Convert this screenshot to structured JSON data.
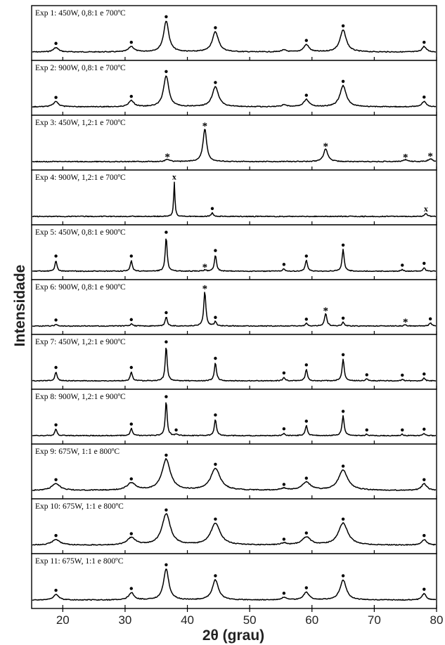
{
  "chart_data": {
    "type": "line",
    "xlabel": "2θ (grau)",
    "ylabel": "Intensidade",
    "xlim": [
      15,
      80
    ],
    "xticks": [
      20,
      30,
      40,
      50,
      60,
      70,
      80
    ],
    "marker_legend": {
      "dot": "•",
      "star": "*",
      "cross": "x"
    },
    "panels": [
      {
        "label": "Exp 1: 450W, 0,8:1 e 700ºC",
        "peaks": [
          {
            "x": 18.9,
            "h": 0.12,
            "w": 0.5,
            "m": "dot"
          },
          {
            "x": 31.0,
            "h": 0.15,
            "w": 0.5,
            "m": "dot"
          },
          {
            "x": 36.6,
            "h": 0.85,
            "w": 0.5,
            "m": "dot"
          },
          {
            "x": 44.5,
            "h": 0.55,
            "w": 0.6,
            "m": "dot"
          },
          {
            "x": 55.5,
            "h": 0.05,
            "w": 0.5,
            "m": ""
          },
          {
            "x": 59.1,
            "h": 0.2,
            "w": 0.5,
            "m": "dot"
          },
          {
            "x": 65.0,
            "h": 0.6,
            "w": 0.6,
            "m": "dot"
          },
          {
            "x": 78.0,
            "h": 0.15,
            "w": 0.4,
            "m": "dot"
          }
        ]
      },
      {
        "label": "Exp 2: 900W, 0,8:1 e 700ºC",
        "peaks": [
          {
            "x": 18.9,
            "h": 0.14,
            "w": 0.5,
            "m": "dot"
          },
          {
            "x": 31.0,
            "h": 0.17,
            "w": 0.5,
            "m": "dot"
          },
          {
            "x": 36.6,
            "h": 0.85,
            "w": 0.5,
            "m": "dot"
          },
          {
            "x": 44.5,
            "h": 0.55,
            "w": 0.6,
            "m": "dot"
          },
          {
            "x": 55.5,
            "h": 0.05,
            "w": 0.5,
            "m": ""
          },
          {
            "x": 59.1,
            "h": 0.2,
            "w": 0.5,
            "m": "dot"
          },
          {
            "x": 65.0,
            "h": 0.58,
            "w": 0.6,
            "m": "dot"
          },
          {
            "x": 78.0,
            "h": 0.15,
            "w": 0.4,
            "m": "dot"
          }
        ]
      },
      {
        "label": "Exp 3: 450W, 1,2:1 e 700ºC",
        "peaks": [
          {
            "x": 36.8,
            "h": 0.06,
            "w": 0.4,
            "m": "star"
          },
          {
            "x": 42.8,
            "h": 0.9,
            "w": 0.35,
            "m": "star"
          },
          {
            "x": 62.2,
            "h": 0.35,
            "w": 0.4,
            "m": "star"
          },
          {
            "x": 75.0,
            "h": 0.05,
            "w": 0.4,
            "m": "star"
          },
          {
            "x": 79.0,
            "h": 0.08,
            "w": 0.4,
            "m": "star"
          }
        ]
      },
      {
        "label": "Exp 4: 900W, 1,2:1 e 700ºC",
        "peaks": [
          {
            "x": 37.9,
            "h": 0.95,
            "w": 0.12,
            "m": "cross"
          },
          {
            "x": 44.0,
            "h": 0.1,
            "w": 0.2,
            "m": "dot"
          },
          {
            "x": 78.3,
            "h": 0.08,
            "w": 0.2,
            "m": "cross"
          }
        ]
      },
      {
        "label": "Exp 5: 450W, 0,8:1 e 900ºC",
        "peaks": [
          {
            "x": 18.9,
            "h": 0.3,
            "w": 0.18,
            "m": "dot"
          },
          {
            "x": 31.0,
            "h": 0.3,
            "w": 0.18,
            "m": "dot"
          },
          {
            "x": 36.6,
            "h": 0.95,
            "w": 0.18,
            "m": "dot"
          },
          {
            "x": 42.8,
            "h": 0.04,
            "w": 0.2,
            "m": "star"
          },
          {
            "x": 44.5,
            "h": 0.45,
            "w": 0.2,
            "m": "dot"
          },
          {
            "x": 55.5,
            "h": 0.07,
            "w": 0.2,
            "m": "dot"
          },
          {
            "x": 59.1,
            "h": 0.3,
            "w": 0.2,
            "m": "dot"
          },
          {
            "x": 65.0,
            "h": 0.6,
            "w": 0.2,
            "m": "dot"
          },
          {
            "x": 74.5,
            "h": 0.05,
            "w": 0.2,
            "m": "dot"
          },
          {
            "x": 78.0,
            "h": 0.1,
            "w": 0.2,
            "m": "dot"
          }
        ]
      },
      {
        "label": "Exp 6: 900W, 0,8:1 e 900ºC",
        "peaks": [
          {
            "x": 18.9,
            "h": 0.05,
            "w": 0.2,
            "m": "dot"
          },
          {
            "x": 31.0,
            "h": 0.06,
            "w": 0.2,
            "m": "dot"
          },
          {
            "x": 36.6,
            "h": 0.25,
            "w": 0.2,
            "m": "dot"
          },
          {
            "x": 42.8,
            "h": 0.95,
            "w": 0.2,
            "m": "star"
          },
          {
            "x": 44.5,
            "h": 0.12,
            "w": 0.2,
            "m": "dot"
          },
          {
            "x": 59.1,
            "h": 0.07,
            "w": 0.2,
            "m": "dot"
          },
          {
            "x": 62.2,
            "h": 0.35,
            "w": 0.22,
            "m": "star"
          },
          {
            "x": 65.0,
            "h": 0.1,
            "w": 0.2,
            "m": "dot"
          },
          {
            "x": 75.0,
            "h": 0.04,
            "w": 0.2,
            "m": "star"
          },
          {
            "x": 79.0,
            "h": 0.08,
            "w": 0.25,
            "m": "dot"
          }
        ]
      },
      {
        "label": "Exp 7: 450W, 1,2:1 e 900ºC",
        "peaks": [
          {
            "x": 18.9,
            "h": 0.25,
            "w": 0.2,
            "m": "dot"
          },
          {
            "x": 31.0,
            "h": 0.25,
            "w": 0.2,
            "m": "dot"
          },
          {
            "x": 36.6,
            "h": 0.95,
            "w": 0.18,
            "m": "dot"
          },
          {
            "x": 44.5,
            "h": 0.5,
            "w": 0.2,
            "m": "dot"
          },
          {
            "x": 55.5,
            "h": 0.1,
            "w": 0.2,
            "m": "dot"
          },
          {
            "x": 59.1,
            "h": 0.32,
            "w": 0.2,
            "m": "dot"
          },
          {
            "x": 65.0,
            "h": 0.6,
            "w": 0.2,
            "m": "dot"
          },
          {
            "x": 68.8,
            "h": 0.05,
            "w": 0.2,
            "m": "dot"
          },
          {
            "x": 74.5,
            "h": 0.04,
            "w": 0.2,
            "m": "dot"
          },
          {
            "x": 78.0,
            "h": 0.07,
            "w": 0.2,
            "m": "dot"
          }
        ]
      },
      {
        "label": "Exp 8: 900W, 1,2:1 e 900ºC",
        "peaks": [
          {
            "x": 18.9,
            "h": 0.18,
            "w": 0.2,
            "m": "dot"
          },
          {
            "x": 31.0,
            "h": 0.2,
            "w": 0.2,
            "m": "dot"
          },
          {
            "x": 36.6,
            "h": 0.95,
            "w": 0.18,
            "m": "dot"
          },
          {
            "x": 38.2,
            "h": 0.04,
            "w": 0.2,
            "m": "dot"
          },
          {
            "x": 44.5,
            "h": 0.45,
            "w": 0.2,
            "m": "dot"
          },
          {
            "x": 55.5,
            "h": 0.07,
            "w": 0.2,
            "m": "dot"
          },
          {
            "x": 59.1,
            "h": 0.28,
            "w": 0.2,
            "m": "dot"
          },
          {
            "x": 65.0,
            "h": 0.55,
            "w": 0.2,
            "m": "dot"
          },
          {
            "x": 68.8,
            "h": 0.04,
            "w": 0.2,
            "m": "dot"
          },
          {
            "x": 74.5,
            "h": 0.04,
            "w": 0.2,
            "m": "dot"
          },
          {
            "x": 78.0,
            "h": 0.06,
            "w": 0.2,
            "m": "dot"
          }
        ]
      },
      {
        "label": "Exp 9: 675W, 1:1 e 800ºC",
        "peaks": [
          {
            "x": 18.9,
            "h": 0.18,
            "w": 0.8,
            "m": "dot"
          },
          {
            "x": 31.0,
            "h": 0.2,
            "w": 0.8,
            "m": "dot"
          },
          {
            "x": 36.6,
            "h": 0.85,
            "w": 0.8,
            "m": "dot"
          },
          {
            "x": 44.5,
            "h": 0.6,
            "w": 0.9,
            "m": "dot"
          },
          {
            "x": 55.5,
            "h": 0.05,
            "w": 0.6,
            "m": "dot"
          },
          {
            "x": 59.1,
            "h": 0.22,
            "w": 0.8,
            "m": "dot"
          },
          {
            "x": 65.0,
            "h": 0.55,
            "w": 0.9,
            "m": "dot"
          },
          {
            "x": 78.0,
            "h": 0.18,
            "w": 0.5,
            "m": "dot"
          }
        ]
      },
      {
        "label": "Exp 10: 675W, 1:1 e 800ºC",
        "peaks": [
          {
            "x": 18.9,
            "h": 0.15,
            "w": 0.8,
            "m": "dot"
          },
          {
            "x": 31.0,
            "h": 0.2,
            "w": 0.8,
            "m": "dot"
          },
          {
            "x": 36.6,
            "h": 0.85,
            "w": 0.8,
            "m": "dot"
          },
          {
            "x": 44.5,
            "h": 0.6,
            "w": 0.9,
            "m": "dot"
          },
          {
            "x": 55.5,
            "h": 0.05,
            "w": 0.6,
            "m": "dot"
          },
          {
            "x": 59.1,
            "h": 0.22,
            "w": 0.8,
            "m": "dot"
          },
          {
            "x": 65.0,
            "h": 0.6,
            "w": 0.9,
            "m": "dot"
          },
          {
            "x": 78.0,
            "h": 0.15,
            "w": 0.5,
            "m": "dot"
          }
        ]
      },
      {
        "label": "Exp 11: 675W, 1:1 e 800ºC",
        "peaks": [
          {
            "x": 18.9,
            "h": 0.15,
            "w": 0.5,
            "m": "dot"
          },
          {
            "x": 31.0,
            "h": 0.2,
            "w": 0.5,
            "m": "dot"
          },
          {
            "x": 36.6,
            "h": 0.85,
            "w": 0.5,
            "m": "dot"
          },
          {
            "x": 44.5,
            "h": 0.55,
            "w": 0.6,
            "m": "dot"
          },
          {
            "x": 55.5,
            "h": 0.07,
            "w": 0.4,
            "m": "dot"
          },
          {
            "x": 59.1,
            "h": 0.22,
            "w": 0.5,
            "m": "dot"
          },
          {
            "x": 65.0,
            "h": 0.55,
            "w": 0.6,
            "m": "dot"
          },
          {
            "x": 78.0,
            "h": 0.18,
            "w": 0.4,
            "m": "dot"
          }
        ]
      }
    ]
  }
}
